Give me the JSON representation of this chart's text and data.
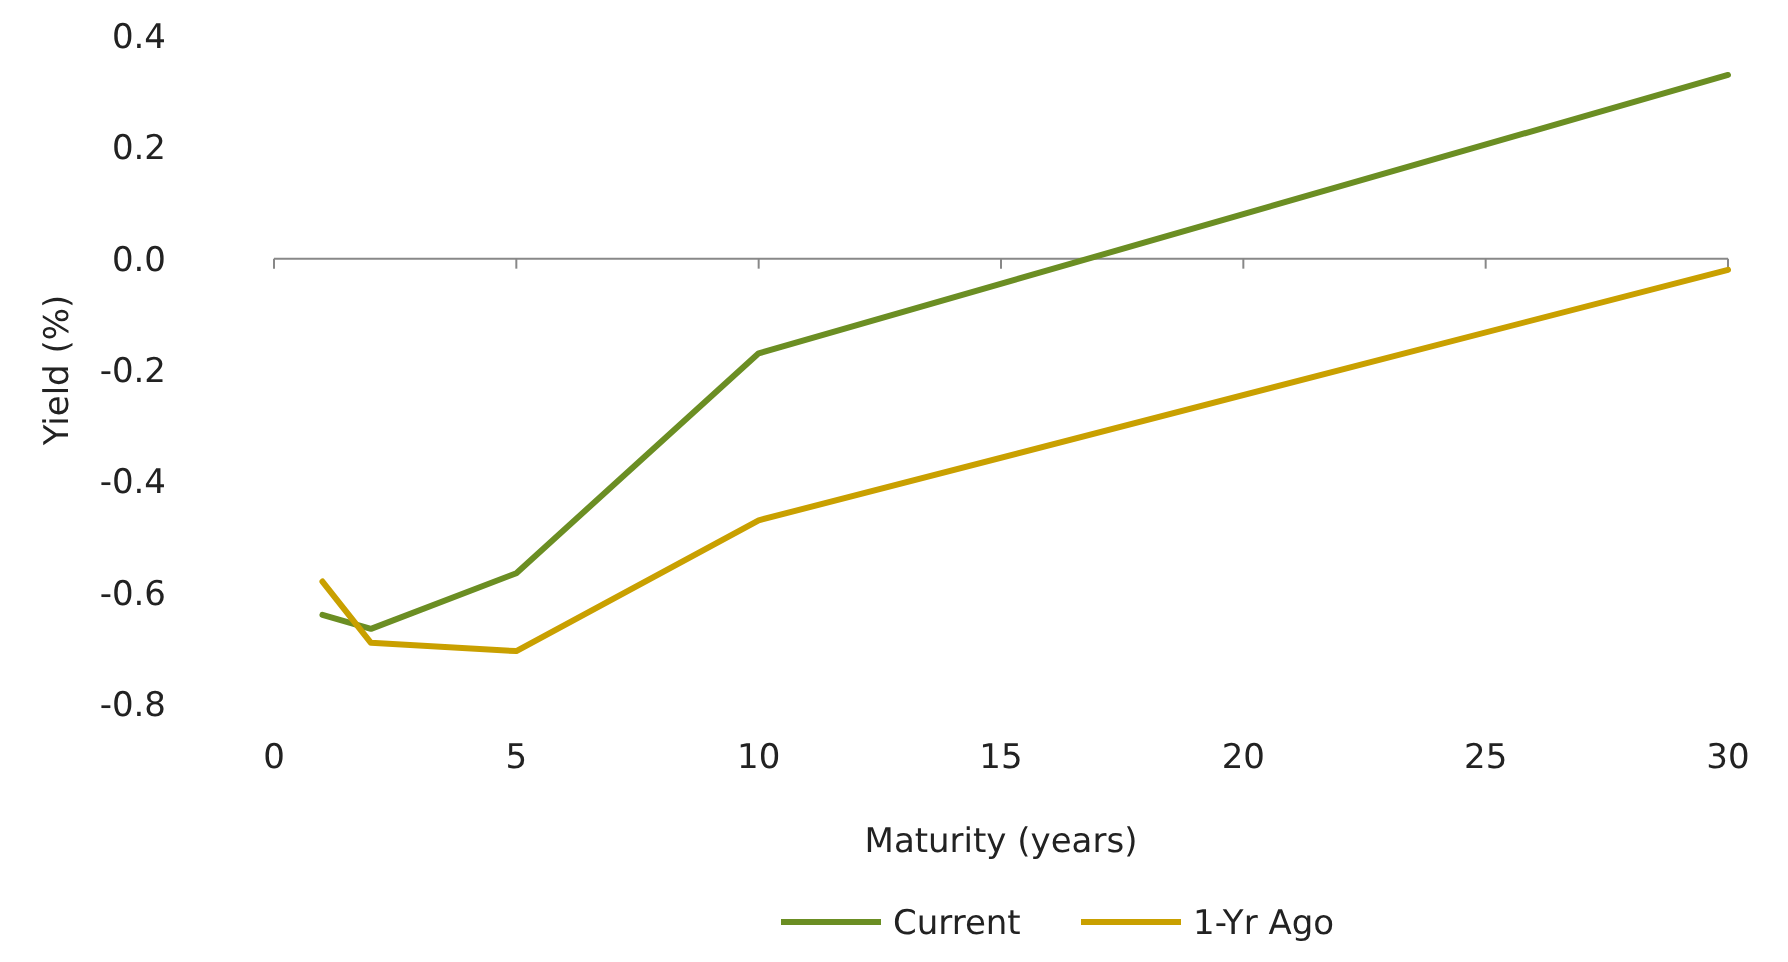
{
  "chart_data": {
    "type": "line",
    "xlabel": "Maturity (years)",
    "ylabel": "Yield (%)",
    "xlim": [
      0,
      30
    ],
    "xticks": [
      0,
      5,
      10,
      15,
      20,
      25,
      30
    ],
    "ylim": [
      -0.8,
      0.4
    ],
    "yticks": [
      {
        "value": -0.8,
        "label": "-0.8"
      },
      {
        "value": -0.6,
        "label": "-0.6"
      },
      {
        "value": -0.4,
        "label": "-0.4"
      },
      {
        "value": -0.2,
        "label": "-0.2"
      },
      {
        "value": 0,
        "label": "0.0"
      },
      {
        "value": 0.2,
        "label": "0.2"
      },
      {
        "value": 0.4,
        "label": "0.4"
      }
    ],
    "x": [
      1,
      2,
      5,
      10,
      30
    ],
    "legend": "bottom",
    "series": [
      {
        "name": "Current",
        "color": "#6b8e23",
        "values": [
          -0.64,
          -0.665,
          -0.565,
          -0.17,
          0.33
        ]
      },
      {
        "name": "1-Yr Ago",
        "color": "#c9a000",
        "values": [
          -0.58,
          -0.69,
          -0.705,
          -0.47,
          -0.02
        ]
      }
    ]
  }
}
